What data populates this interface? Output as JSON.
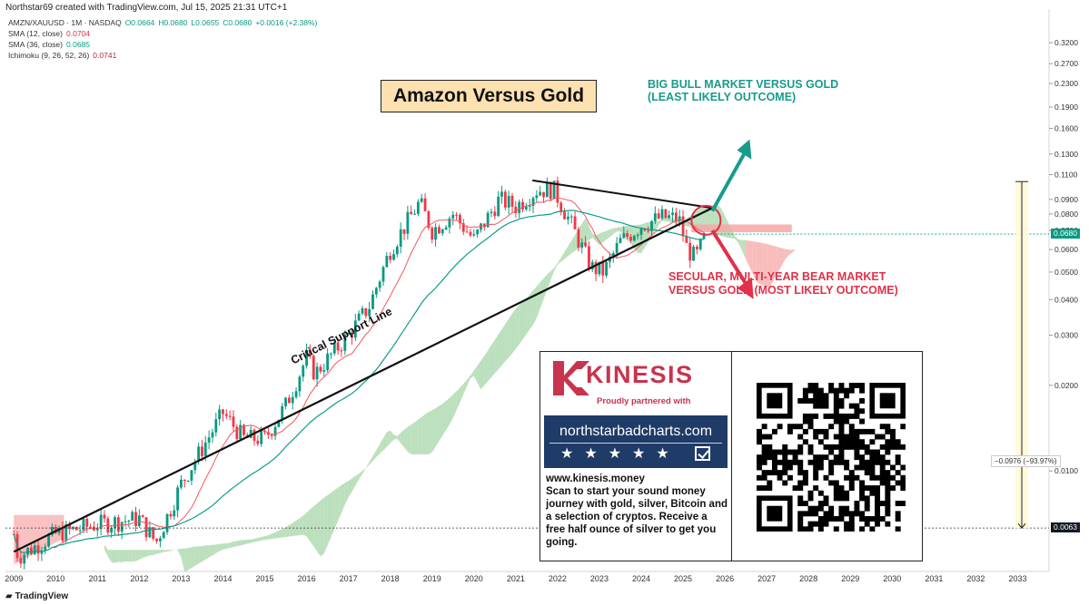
{
  "header": {
    "created_line": "Northstar69 created with TradingView.com, Jul 15, 2025 21:31 UTC+1",
    "symbol_line": {
      "symbol": "AMZN/XAUUSD · 1M · NASDAQ",
      "open": "O0.0664",
      "high": "H0.0680",
      "low": "L0.0655",
      "close": "C0.0680",
      "change": "+0.0016 (+2.38%)"
    },
    "indicators": [
      {
        "label": "SMA (12, close)",
        "value": "0.0704"
      },
      {
        "label": "SMA (36, close)",
        "value": "0.0685"
      },
      {
        "label": "Ichimoku (9, 26, 52, 26)",
        "value": "0.0741"
      }
    ]
  },
  "annotations": {
    "title": "Amazon Versus Gold",
    "bull_text": "BIG BULL MARKET VERSUS GOLD (LEAST LIKELY OUTCOME)",
    "bear_text": "SECULAR, MULTI-YEAR BEAR MARKET VERSUS GOLD (MOST LIKELY OUTCOME)",
    "support_label": "Critical Support Line"
  },
  "ad": {
    "brand": "KINESIS",
    "partner_text": "Proudly partnered with",
    "site_banner": "northstarbadcharts.com",
    "body": "www.kinesis.money\nScan to start your sound money journey with gold, silver, Bitcoin and a selection of cryptos. Receive a free half ounce of silver to get you going.",
    "qr_icon": "qr-code-icon"
  },
  "price_labels": {
    "current": "0.0680",
    "level": "0.0063",
    "measure": "−0.0976 (−93.97%)"
  },
  "footer": {
    "brand": "TradingView",
    "logo_icon": "tradingview-logo-icon"
  },
  "colors": {
    "up": "#089981",
    "down": "#f23645",
    "sma12": "#f4575f",
    "sma36": "#0f9c8b",
    "cloud_bull": "#a5d6a7",
    "cloud_bear": "#f7a6a6",
    "bull_arrow": "#179b8b",
    "bear_arrow": "#e0314a"
  },
  "chart_data": {
    "type": "candlestick",
    "symbol": "AMZN/XAUUSD",
    "interval": "1M",
    "y_scale": "log",
    "ylim": [
      0.0045,
      0.42
    ],
    "yticks": [
      0.32,
      0.27,
      0.23,
      0.19,
      0.16,
      0.13,
      0.11,
      0.09,
      0.08,
      0.07,
      0.06,
      0.05,
      0.04,
      0.03,
      0.02,
      0.01
    ],
    "ytick_labels": [
      "0.3200",
      "0.2700",
      "0.2300",
      "0.1900",
      "0.1600",
      "0.1300",
      "0.1100",
      "0.0900",
      "0.0800",
      "0.0700",
      "0.0600",
      "0.0500",
      "0.0400",
      "0.0300",
      "0.0200",
      "0.0100"
    ],
    "x_labels": [
      "2009",
      "2010",
      "2011",
      "2012",
      "2013",
      "2014",
      "2015",
      "2016",
      "2017",
      "2018",
      "2019",
      "2020",
      "2021",
      "2022",
      "2023",
      "2024",
      "2025",
      "2026",
      "2027",
      "2028",
      "2029",
      "2030",
      "2031",
      "2032",
      "2033"
    ],
    "trend": [
      {
        "date": "2009.00",
        "value": 0.006
      },
      {
        "date": "2009.10",
        "value": 0.005
      },
      {
        "date": "2010.00",
        "value": 0.006
      },
      {
        "date": "2011.00",
        "value": 0.0065
      },
      {
        "date": "2012.00",
        "value": 0.0068
      },
      {
        "date": "2012.40",
        "value": 0.0056
      },
      {
        "date": "2013.00",
        "value": 0.009
      },
      {
        "date": "2014.00",
        "value": 0.016
      },
      {
        "date": "2014.50",
        "value": 0.013
      },
      {
        "date": "2015.00",
        "value": 0.013
      },
      {
        "date": "2015.50",
        "value": 0.017
      },
      {
        "date": "2016.00",
        "value": 0.025
      },
      {
        "date": "2016.20",
        "value": 0.022
      },
      {
        "date": "2017.00",
        "value": 0.03
      },
      {
        "date": "2017.50",
        "value": 0.038
      },
      {
        "date": "2018.00",
        "value": 0.06
      },
      {
        "date": "2018.70",
        "value": 0.088
      },
      {
        "date": "2019.00",
        "value": 0.07
      },
      {
        "date": "2019.50",
        "value": 0.08
      },
      {
        "date": "2020.00",
        "value": 0.065
      },
      {
        "date": "2020.60",
        "value": 0.09
      },
      {
        "date": "2021.00",
        "value": 0.085
      },
      {
        "date": "2021.50",
        "value": 0.097
      },
      {
        "date": "2021.90",
        "value": 0.098
      },
      {
        "date": "2022.30",
        "value": 0.075
      },
      {
        "date": "2022.80",
        "value": 0.052
      },
      {
        "date": "2023.10",
        "value": 0.05
      },
      {
        "date": "2023.50",
        "value": 0.064
      },
      {
        "date": "2024.00",
        "value": 0.073
      },
      {
        "date": "2024.50",
        "value": 0.078
      },
      {
        "date": "2024.90",
        "value": 0.077
      },
      {
        "date": "2025.10",
        "value": 0.06
      },
      {
        "date": "2025.30",
        "value": 0.056
      },
      {
        "date": "2025.55",
        "value": 0.068
      }
    ],
    "current_price": 0.068,
    "level_line": 0.0063,
    "support_line": [
      {
        "date": "2009.0",
        "value": 0.0052
      },
      {
        "date": "2025.7",
        "value": 0.084
      }
    ],
    "resistance_line": [
      {
        "date": "2021.4",
        "value": 0.105
      },
      {
        "date": "2025.7",
        "value": 0.084
      }
    ]
  }
}
